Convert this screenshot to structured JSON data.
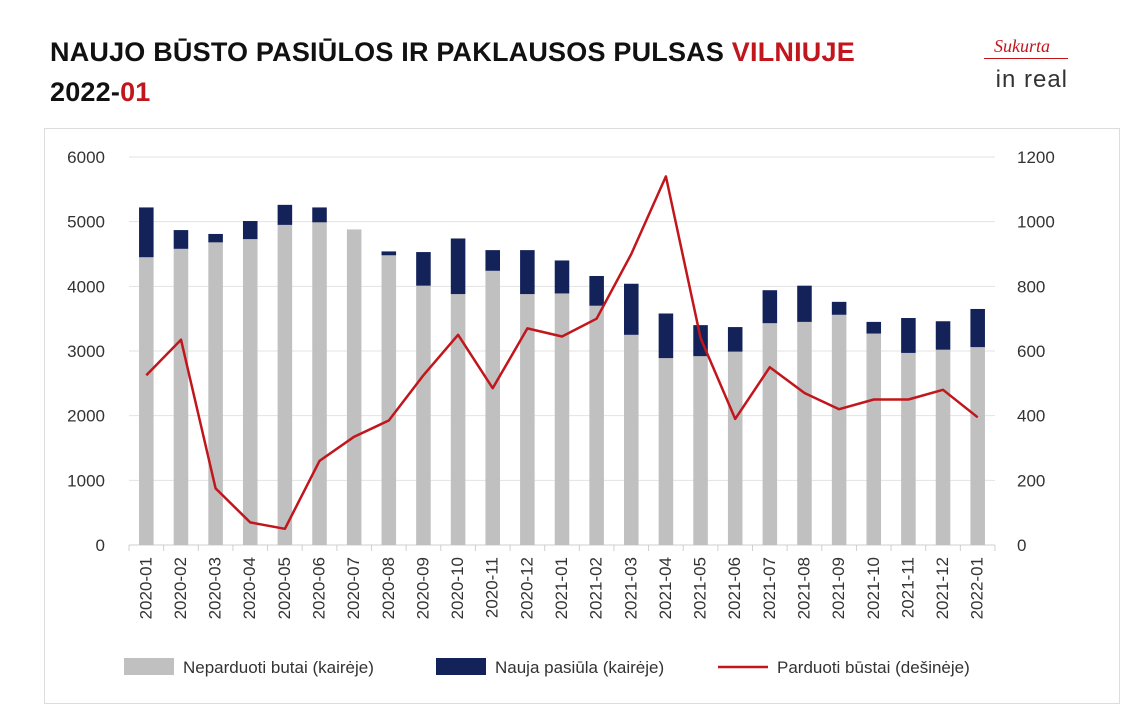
{
  "header": {
    "title_main": "NAUJO BŪSTO PASIŪLOS IR PAKLAUSOS PULSAS ",
    "title_accent": "VILNIUJE",
    "subtitle_year": "2022-",
    "subtitle_month": "01"
  },
  "logo": {
    "script_text": "Sukurta",
    "brand_text": "in real"
  },
  "colors": {
    "unsold": "#c0c0c0",
    "new_supply": "#14225a",
    "sold_line": "#c0161c",
    "accent": "#c0161c"
  },
  "chart_data": {
    "type": "bar",
    "stacked": true,
    "categories": [
      "2020-01",
      "2020-02",
      "2020-03",
      "2020-04",
      "2020-05",
      "2020-06",
      "2020-07",
      "2020-08",
      "2020-09",
      "2020-10",
      "2020-11",
      "2020-12",
      "2021-01",
      "2021-02",
      "2021-03",
      "2021-04",
      "2021-05",
      "2021-06",
      "2021-07",
      "2021-08",
      "2021-09",
      "2021-10",
      "2021-11",
      "2021-12",
      "2022-01"
    ],
    "series": [
      {
        "name": "Neparduoti butai (kairėje)",
        "axis": "left",
        "kind": "bar",
        "values": [
          4450,
          4580,
          4680,
          4730,
          4950,
          4990,
          4880,
          4480,
          4010,
          3880,
          4240,
          3880,
          3890,
          3700,
          3250,
          2890,
          2920,
          2990,
          3430,
          3450,
          3560,
          3270,
          2970,
          3020,
          3060
        ]
      },
      {
        "name": "Nauja pasiūla (kairėje)",
        "axis": "left",
        "kind": "bar",
        "values": [
          770,
          290,
          130,
          280,
          310,
          230,
          0,
          60,
          520,
          860,
          320,
          680,
          510,
          460,
          790,
          690,
          480,
          380,
          510,
          560,
          200,
          180,
          540,
          440,
          590
        ]
      },
      {
        "name": "Parduoti būstai (dešinėje)",
        "axis": "right",
        "kind": "line",
        "values": [
          525,
          635,
          175,
          70,
          50,
          260,
          335,
          385,
          525,
          650,
          485,
          670,
          645,
          700,
          900,
          1140,
          640,
          390,
          550,
          470,
          420,
          450,
          450,
          480,
          395
        ]
      }
    ],
    "y_left": {
      "min": 0,
      "max": 6000,
      "ticks": [
        0,
        1000,
        2000,
        3000,
        4000,
        5000,
        6000
      ]
    },
    "y_right": {
      "min": 0,
      "max": 1200,
      "ticks": [
        0,
        200,
        400,
        600,
        800,
        1000,
        1200
      ]
    },
    "grid": true,
    "legend_position": "bottom"
  }
}
